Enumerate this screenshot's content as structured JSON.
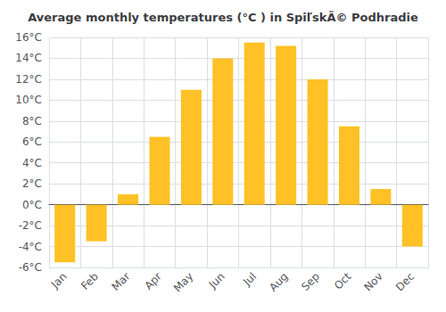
{
  "chart_data": {
    "type": "bar",
    "title": "Average monthly temperatures (°C ) in SpiľskÃ© Podhradie",
    "categories": [
      "Jan",
      "Feb",
      "Mar",
      "Apr",
      "May",
      "Jun",
      "Jul",
      "Aug",
      "Sep",
      "Oct",
      "Nov",
      "Dec"
    ],
    "values": [
      -5.5,
      -3.5,
      1.0,
      6.5,
      11.0,
      14.0,
      15.5,
      15.2,
      12.0,
      7.5,
      1.5,
      -4.0
    ],
    "color": "#FFC125",
    "ylim": [
      -6,
      16
    ],
    "yticks": [
      {
        "value": -6,
        "label": "-6°C"
      },
      {
        "value": -4,
        "label": "-4°C"
      },
      {
        "value": -2,
        "label": "-2°C"
      },
      {
        "value": 0,
        "label": "0°C"
      },
      {
        "value": 2,
        "label": "2°C"
      },
      {
        "value": 4,
        "label": "4°C"
      },
      {
        "value": 6,
        "label": "6°C"
      },
      {
        "value": 8,
        "label": "8°C"
      },
      {
        "value": 10,
        "label": "10°C"
      },
      {
        "value": 12,
        "label": "12°C"
      },
      {
        "value": 14,
        "label": "14°C"
      },
      {
        "value": 16,
        "label": "16°C"
      }
    ],
    "grid": true
  }
}
